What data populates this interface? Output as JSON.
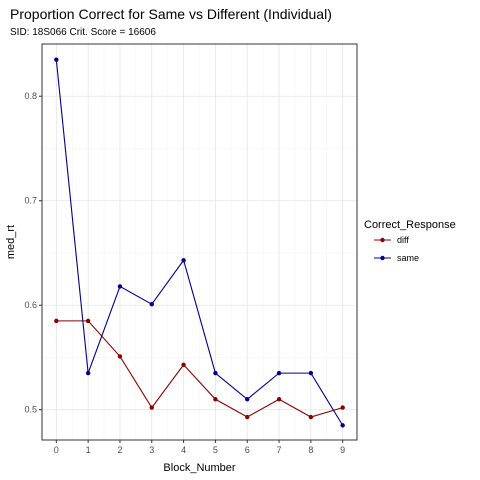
{
  "chart_data": {
    "type": "line",
    "title": "Proportion Correct for Same vs Different (Individual)",
    "subtitle": "SID:  18S066 Crit. Score =  16606",
    "xlabel": "Block_Number",
    "ylabel": "med_rt",
    "x": [
      0,
      1,
      2,
      3,
      4,
      5,
      6,
      7,
      8,
      9
    ],
    "xlim": [
      -0.45,
      9.45
    ],
    "ylim": [
      0.471,
      0.85
    ],
    "x_ticks": [
      "0",
      "1",
      "2",
      "3",
      "4",
      "5",
      "6",
      "7",
      "8",
      "9"
    ],
    "y_ticks": [
      0.5,
      0.6,
      0.7,
      0.8
    ],
    "y_tick_labels": [
      "0.5",
      "0.6",
      "0.7",
      "0.8"
    ],
    "grid": true,
    "legend": {
      "title": "Correct_Response",
      "placement": "right"
    },
    "series": [
      {
        "name": "diff",
        "color": "#8b0000",
        "values": [
          0.585,
          0.585,
          0.551,
          0.502,
          0.543,
          0.51,
          0.493,
          0.51,
          0.493,
          0.502
        ]
      },
      {
        "name": "same",
        "color": "#00008b",
        "values": [
          0.835,
          0.535,
          0.618,
          0.601,
          0.643,
          0.535,
          0.51,
          0.535,
          0.535,
          0.485
        ]
      }
    ]
  }
}
